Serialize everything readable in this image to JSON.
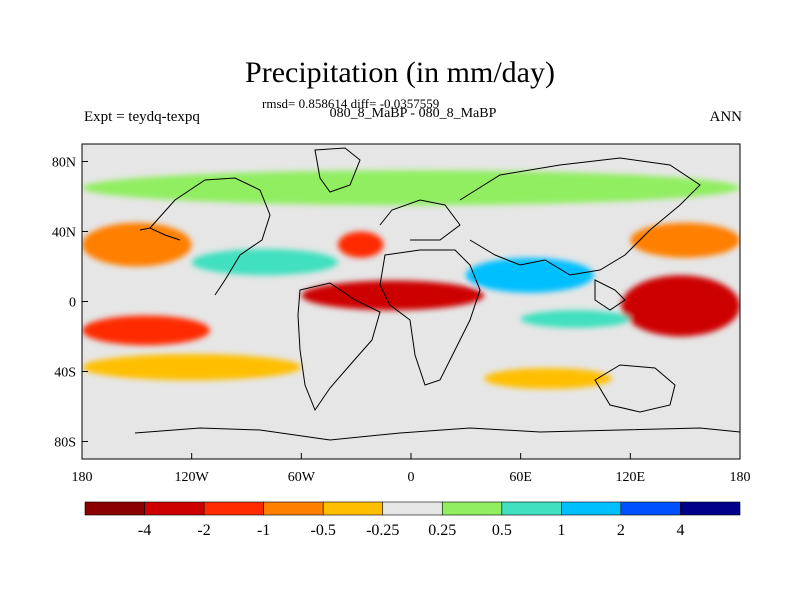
{
  "title": "Precipitation (in mm/day)",
  "stats": "rmsd= 0.858614 diff= -0.0357559",
  "subtitle": "080_8_MaBP - 080_8_MaBP",
  "expt_label": "Expt = teydq-texpq",
  "season": "ANN",
  "axes": {
    "x_ticks": [
      "180",
      "120W",
      "60W",
      "0",
      "60E",
      "120E",
      "180"
    ],
    "y_ticks": [
      "80N",
      "40N",
      "0",
      "40S",
      "80S"
    ],
    "lon_range": [
      -180,
      180
    ],
    "lat_range": [
      -90,
      90
    ]
  },
  "colorbar": {
    "colors": [
      "#8b0000",
      "#cd0000",
      "#ff2a00",
      "#ff7f00",
      "#ffbf00",
      "#e6e6e6",
      "#90ee60",
      "#40e0c0",
      "#00bfff",
      "#0050ff",
      "#00008b"
    ],
    "labels": [
      "-4",
      "-2",
      "-1",
      "-0.5",
      "-0.25",
      "0.25",
      "0.5",
      "1",
      "2",
      "4"
    ]
  },
  "chart_data": {
    "type": "heatmap",
    "variable": "Precipitation difference",
    "units": "mm/day",
    "projection": "cylindrical equidistant",
    "levels": [
      -4,
      -2,
      -1,
      -0.5,
      -0.25,
      0.25,
      0.5,
      1,
      2,
      4
    ],
    "regions": [
      {
        "lon": [
          -180,
          -110
        ],
        "lat": [
          -25,
          -8
        ],
        "value": -1.5
      },
      {
        "lon": [
          -180,
          -120
        ],
        "lat": [
          20,
          45
        ],
        "value": -0.7
      },
      {
        "lon": [
          -60,
          40
        ],
        "lat": [
          -5,
          12
        ],
        "value": -2.5
      },
      {
        "lon": [
          -40,
          -15
        ],
        "lat": [
          25,
          40
        ],
        "value": -1.2
      },
      {
        "lon": [
          115,
          180
        ],
        "lat": [
          -20,
          15
        ],
        "value": -2.5
      },
      {
        "lon": [
          120,
          180
        ],
        "lat": [
          25,
          45
        ],
        "value": -1.0
      },
      {
        "lon": [
          -120,
          -40
        ],
        "lat": [
          15,
          30
        ],
        "value": 0.7
      },
      {
        "lon": [
          30,
          100
        ],
        "lat": [
          5,
          25
        ],
        "value": 1.5
      },
      {
        "lon": [
          -180,
          180
        ],
        "lat": [
          55,
          75
        ],
        "value": 0.4
      },
      {
        "lon": [
          -180,
          -60
        ],
        "lat": [
          -45,
          -30
        ],
        "value": -0.3
      },
      {
        "lon": [
          60,
          120
        ],
        "lat": [
          -15,
          -5
        ],
        "value": 0.6
      },
      {
        "lon": [
          40,
          110
        ],
        "lat": [
          -50,
          -38
        ],
        "value": -0.3
      }
    ]
  }
}
